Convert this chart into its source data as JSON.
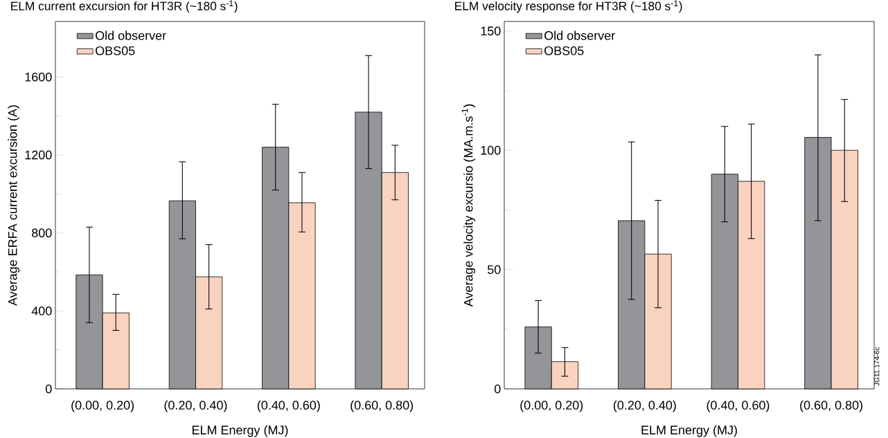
{
  "chart_data": [
    {
      "type": "bar",
      "title": "ELM current excursion for HT3R (~180 s$^{-1}$)",
      "xlabel": "ELM Energy (MJ)",
      "ylabel": "Average ERFA current excursion (A)",
      "categories": [
        "(0.00, 0.20)",
        "(0.20, 0.40)",
        "(0.40, 0.60)",
        "(0.60, 0.80)"
      ],
      "series": [
        {
          "name": "Old observer",
          "color": "#939598",
          "values": [
            585,
            965,
            1240,
            1420
          ],
          "errors": [
            [
              340,
              830
            ],
            [
              770,
              1165
            ],
            [
              1020,
              1460
            ],
            [
              1130,
              1710
            ]
          ]
        },
        {
          "name": "OBS05",
          "color": "#f9d3c0",
          "values": [
            390,
            575,
            955,
            1110
          ],
          "errors": [
            [
              300,
              485
            ],
            [
              410,
              740
            ],
            [
              805,
              1110
            ],
            [
              970,
              1250
            ]
          ]
        }
      ],
      "ylim": [
        0,
        1885
      ],
      "yticks": [
        0,
        400,
        800,
        1200,
        1600
      ],
      "legend": "top left"
    },
    {
      "type": "bar",
      "title": "ELM velocity response for HT3R (~180 s$^{-1}$)",
      "xlabel": "ELM Energy (MJ)",
      "ylabel": "Average velocity excursio (MA.m.s$^{-1}$)",
      "categories": [
        "(0.00, 0.20)",
        "(0.20, 0.40)",
        "(0.40, 0.60)",
        "(0.60, 0.80)"
      ],
      "series": [
        {
          "name": "Old observer",
          "color": "#939598",
          "values": [
            26,
            70.5,
            90,
            105.4
          ],
          "errors": [
            [
              15,
              37
            ],
            [
              37.5,
              103.5
            ],
            [
              70,
              110
            ],
            [
              70.5,
              140
            ]
          ]
        },
        {
          "name": "OBS05",
          "color": "#f9d3c0",
          "values": [
            11.4,
            56.5,
            87,
            100
          ],
          "errors": [
            [
              5.3,
              17.3
            ],
            [
              34,
              79
            ],
            [
              63,
              111
            ],
            [
              78.5,
              121.3
            ]
          ]
        }
      ],
      "ylim": [
        0,
        154
      ],
      "yticks": [
        0,
        50,
        100,
        150
      ],
      "legend": "top left",
      "annotations": [
        "JG11.174-6c"
      ]
    }
  ]
}
